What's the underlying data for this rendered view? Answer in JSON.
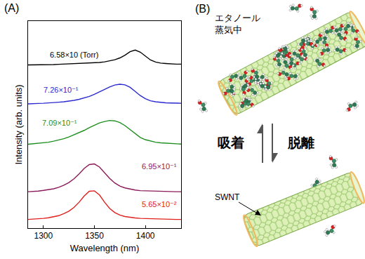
{
  "panel_labels": [
    "(A)",
    "(B)"
  ],
  "chart_data": {
    "type": "line",
    "x_label": "Wavelength (nm)",
    "y_label": "Intensity (arb. units)",
    "x": [
      1285,
      1290,
      1295,
      1300,
      1305,
      1310,
      1315,
      1320,
      1325,
      1330,
      1335,
      1340,
      1345,
      1350,
      1355,
      1360,
      1365,
      1370,
      1375,
      1380,
      1385,
      1390,
      1395,
      1400,
      1405,
      1410,
      1415,
      1420,
      1425,
      1430,
      1435
    ],
    "xlim": [
      1285,
      1435
    ],
    "xticks": [
      1300,
      1350,
      1400
    ],
    "ylim": [
      0,
      10
    ],
    "yticks": [],
    "tick_labels": "x",
    "grid": false,
    "series": [
      {
        "name": "6.58×10 (Torr)",
        "color": "#000000",
        "values": [
          7.88,
          7.88,
          7.89,
          7.89,
          7.9,
          7.9,
          7.91,
          7.92,
          7.93,
          7.94,
          7.95,
          7.96,
          7.97,
          7.98,
          8.0,
          8.03,
          8.07,
          8.13,
          8.22,
          8.35,
          8.52,
          8.6,
          8.5,
          8.3,
          8.12,
          8.02,
          7.97,
          7.95,
          7.93,
          7.92,
          7.92
        ]
      },
      {
        "name": "7.26×10⁻¹",
        "color": "#2a2ad0",
        "values": [
          6.0,
          6.0,
          6.02,
          6.03,
          6.04,
          6.06,
          6.08,
          6.1,
          6.13,
          6.17,
          6.22,
          6.28,
          6.36,
          6.46,
          6.58,
          6.7,
          6.82,
          6.91,
          6.95,
          6.92,
          6.8,
          6.6,
          6.4,
          6.25,
          6.15,
          6.1,
          6.07,
          6.05,
          6.04,
          6.03,
          6.03
        ]
      },
      {
        "name": "7.09×10⁻¹",
        "color": "#1f8f1f",
        "values": [
          4.05,
          4.07,
          4.1,
          4.12,
          4.15,
          4.2,
          4.25,
          4.32,
          4.4,
          4.5,
          4.6,
          4.72,
          4.85,
          4.97,
          5.08,
          5.15,
          5.2,
          5.18,
          5.1,
          4.95,
          4.75,
          4.55,
          4.38,
          4.27,
          4.2,
          4.15,
          4.12,
          4.1,
          4.08,
          4.07,
          4.06
        ]
      },
      {
        "name": "6.95×10⁻¹",
        "color": "#8b1a5a",
        "values": [
          1.76,
          1.77,
          1.79,
          1.82,
          1.85,
          1.9,
          1.97,
          2.07,
          2.2,
          2.38,
          2.62,
          2.88,
          3.07,
          3.1,
          2.95,
          2.68,
          2.4,
          2.18,
          2.03,
          1.94,
          1.88,
          1.84,
          1.81,
          1.8,
          1.79,
          1.78,
          1.77,
          1.77,
          1.76,
          1.76,
          1.76
        ]
      },
      {
        "name": "5.65×10⁻²",
        "color": "#e0201c",
        "values": [
          0.42,
          0.43,
          0.45,
          0.47,
          0.5,
          0.54,
          0.6,
          0.7,
          0.82,
          1.0,
          1.25,
          1.55,
          1.78,
          1.8,
          1.6,
          1.25,
          0.95,
          0.75,
          0.63,
          0.56,
          0.52,
          0.49,
          0.47,
          0.46,
          0.45,
          0.44,
          0.43,
          0.43,
          0.42,
          0.42,
          0.42
        ]
      }
    ]
  },
  "diagram": {
    "vapor_label": [
      "エタノール",
      "蒸気中"
    ],
    "adsorption": "吸着",
    "desorption": "脱離",
    "tube_label": "SWNT"
  }
}
